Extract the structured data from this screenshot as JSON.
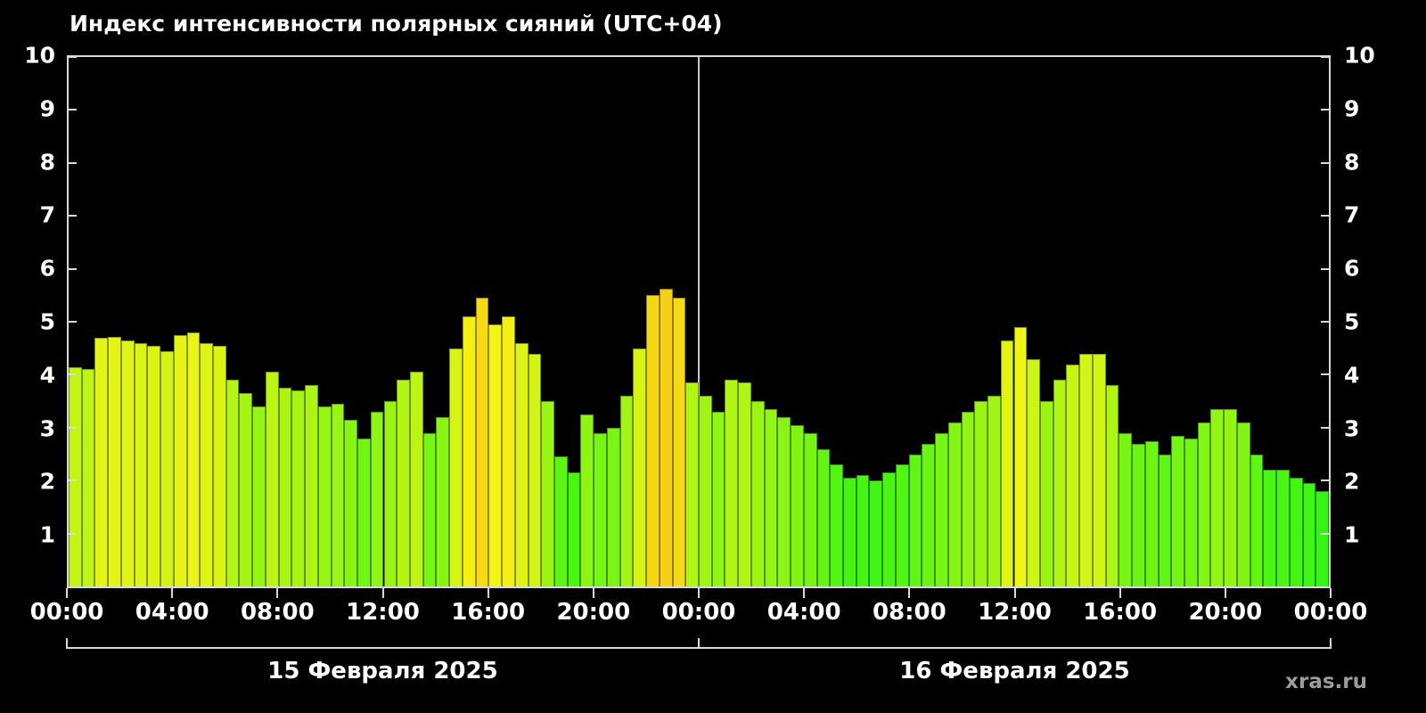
{
  "title": "Индекс интенсивности полярных сияний (UTC+04)",
  "watermark": "xras.ru",
  "colors": {
    "background": "#000000",
    "frame": "#d9d9d9",
    "text": "#ffffff",
    "day_divider": "#c8c8c8",
    "watermark": "#9c9c9c",
    "bar_low_green": "#44dd22",
    "bar_high_yellow": "#ffd500"
  },
  "chart_data": {
    "type": "bar",
    "title": "Индекс интенсивности полярных сияний (UTC+04)",
    "ylim": [
      0,
      10
    ],
    "y_ticks": [
      1,
      2,
      3,
      4,
      5,
      6,
      7,
      8,
      9,
      10
    ],
    "x_tick_labels": [
      "00:00",
      "04:00",
      "08:00",
      "12:00",
      "16:00",
      "20:00",
      "00:00",
      "04:00",
      "08:00",
      "12:00",
      "16:00",
      "20:00",
      "00:00"
    ],
    "interval_minutes": 30,
    "grid": "off",
    "legend": "none",
    "days": [
      {
        "date": "15 Февраля 2025",
        "values": [
          4.15,
          4.1,
          4.7,
          4.72,
          4.65,
          4.6,
          4.55,
          4.45,
          4.75,
          4.8,
          4.6,
          4.55,
          3.9,
          3.65,
          3.4,
          4.05,
          3.75,
          3.7,
          3.8,
          3.4,
          3.45,
          3.15,
          2.8,
          3.3,
          3.5,
          3.9,
          4.05,
          2.9,
          3.2,
          4.5,
          5.1,
          5.45,
          4.95,
          5.1,
          4.6,
          4.4,
          3.5,
          2.45,
          2.15,
          3.25,
          2.9,
          3.0,
          3.6,
          4.5,
          5.5,
          5.62,
          5.45,
          3.85
        ]
      },
      {
        "date": "16 Февраля 2025",
        "values": [
          3.6,
          3.3,
          3.9,
          3.85,
          3.5,
          3.35,
          3.2,
          3.05,
          2.9,
          2.6,
          2.3,
          2.05,
          2.1,
          2.0,
          2.15,
          2.3,
          2.5,
          2.7,
          2.9,
          3.1,
          3.3,
          3.5,
          3.6,
          4.65,
          4.9,
          4.3,
          3.5,
          3.9,
          4.2,
          4.4,
          4.4,
          3.8,
          2.9,
          2.7,
          2.75,
          2.5,
          2.85,
          2.8,
          3.1,
          3.35,
          3.35,
          3.1,
          2.5,
          2.2,
          2.2,
          2.05,
          1.95,
          1.8
        ]
      }
    ]
  }
}
